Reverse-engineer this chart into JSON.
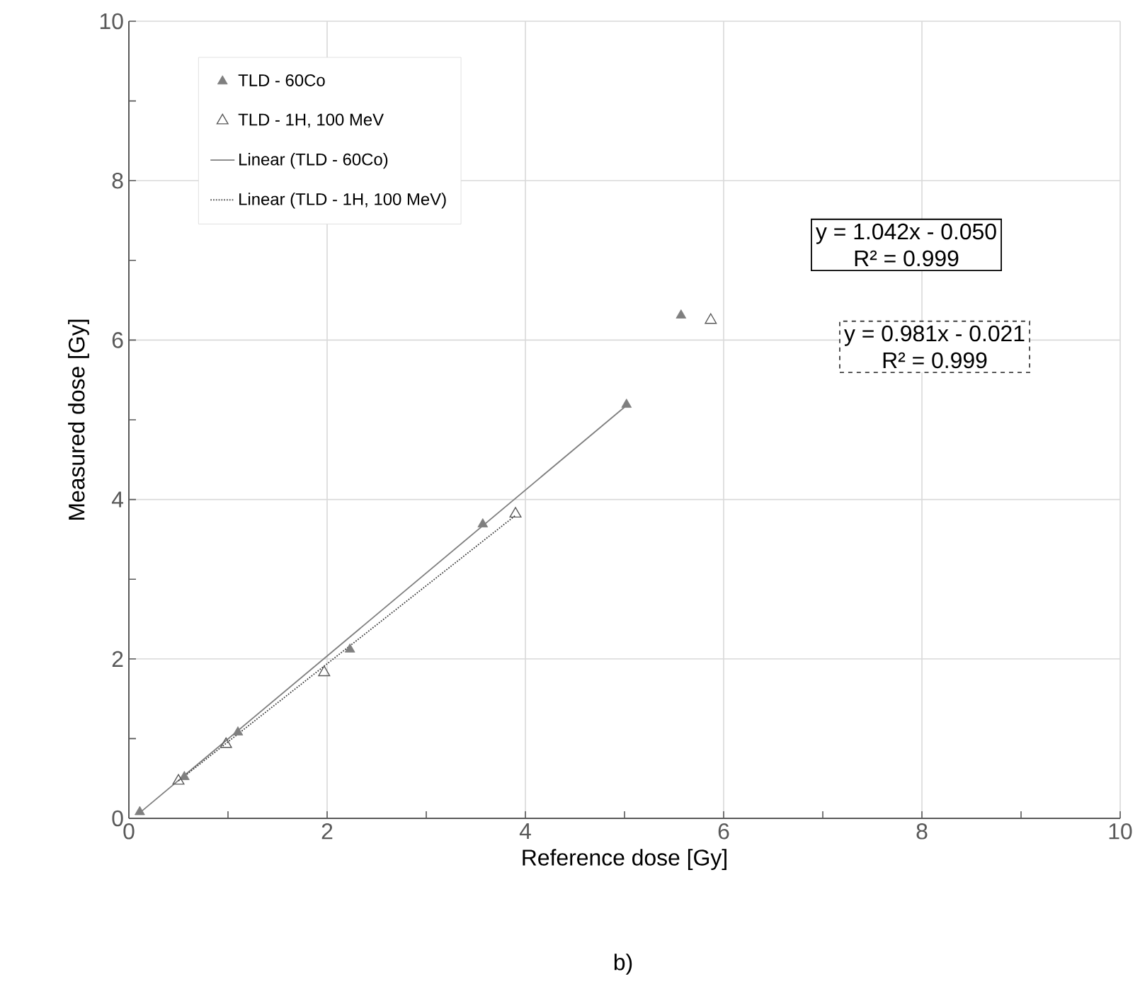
{
  "chart_data": {
    "type": "scatter",
    "xlabel": "Reference dose [Gy]",
    "ylabel": "Measured dose [Gy]",
    "xlim": [
      0,
      10
    ],
    "ylim": [
      0,
      10
    ],
    "xticks": [
      0,
      2,
      4,
      6,
      8,
      10
    ],
    "yticks": [
      0,
      2,
      4,
      6,
      8,
      10
    ],
    "grid": true,
    "legend": "top left",
    "series": [
      {
        "name": "TLD - 60Co",
        "color": "#7f7f7f",
        "marker": "triangle",
        "x": [
          0.11,
          0.56,
          1.1,
          2.23,
          3.57,
          5.02,
          5.57
        ],
        "values": [
          0.08,
          0.52,
          1.08,
          2.12,
          3.69,
          5.19,
          6.31
        ]
      },
      {
        "name": "TLD - 1H, 100 MeV",
        "color": "#595959",
        "marker": "triangle",
        "x": [
          0.5,
          0.98,
          1.97,
          3.9,
          5.87
        ],
        "values": [
          0.47,
          0.93,
          1.83,
          3.82,
          6.25
        ]
      },
      {
        "name": "Linear (TLD - 60Co)",
        "type": "line",
        "color": "#7f7f7f",
        "line_style": "solid",
        "marker": "none",
        "x": [
          0.11,
          5.02
        ],
        "values": [
          0.07,
          5.18
        ]
      },
      {
        "name": "Linear (TLD - 1H, 100 MeV)",
        "type": "line",
        "color": "#404040",
        "line_style": "dotted",
        "marker": "none",
        "x": [
          0.5,
          3.9
        ],
        "values": [
          0.47,
          3.8
        ]
      }
    ],
    "annotations": [
      "y = 1.042x - 0.050",
      "R² = 0.999",
      "y = 0.981x - 0.021",
      "R² = 0.999",
      "b)"
    ]
  }
}
